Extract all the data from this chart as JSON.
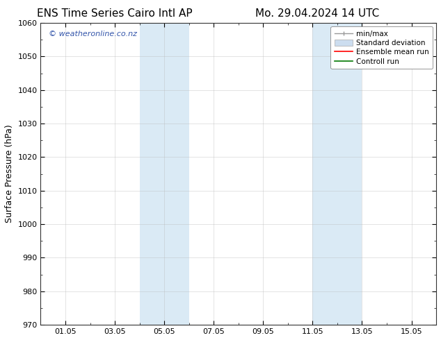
{
  "title_left": "ENS Time Series Cairo Intl AP",
  "title_right": "Mo. 29.04.2024 14 UTC",
  "ylabel": "Surface Pressure (hPa)",
  "ylim": [
    970,
    1060
  ],
  "yticks": [
    970,
    980,
    990,
    1000,
    1010,
    1020,
    1030,
    1040,
    1050,
    1060
  ],
  "xtick_labels": [
    "01.05",
    "03.05",
    "05.05",
    "07.05",
    "09.05",
    "11.05",
    "13.05",
    "15.05"
  ],
  "xtick_positions": [
    1.0,
    3.0,
    5.0,
    7.0,
    9.0,
    11.0,
    13.0,
    15.0
  ],
  "xlim": [
    0.0,
    16.0
  ],
  "shaded_bands": [
    {
      "xmin": 4.0,
      "xmax": 5.0,
      "color": "#daeaf5"
    },
    {
      "xmin": 5.0,
      "xmax": 6.0,
      "color": "#daeaf5"
    },
    {
      "xmin": 11.0,
      "xmax": 12.0,
      "color": "#daeaf5"
    },
    {
      "xmin": 12.0,
      "xmax": 13.0,
      "color": "#daeaf5"
    }
  ],
  "watermark": "© weatheronline.co.nz",
  "watermark_color": "#3355aa",
  "background_color": "#ffffff",
  "legend_items": [
    {
      "label": "min/max",
      "color": "#999999",
      "lw": 1.0
    },
    {
      "label": "Standard deviation",
      "color": "#ccddef",
      "lw": 6
    },
    {
      "label": "Ensemble mean run",
      "color": "#ff0000",
      "lw": 1.2
    },
    {
      "label": "Controll run",
      "color": "#007700",
      "lw": 1.2
    }
  ],
  "title_fontsize": 11,
  "axis_label_fontsize": 9,
  "tick_fontsize": 8,
  "legend_fontsize": 7.5
}
